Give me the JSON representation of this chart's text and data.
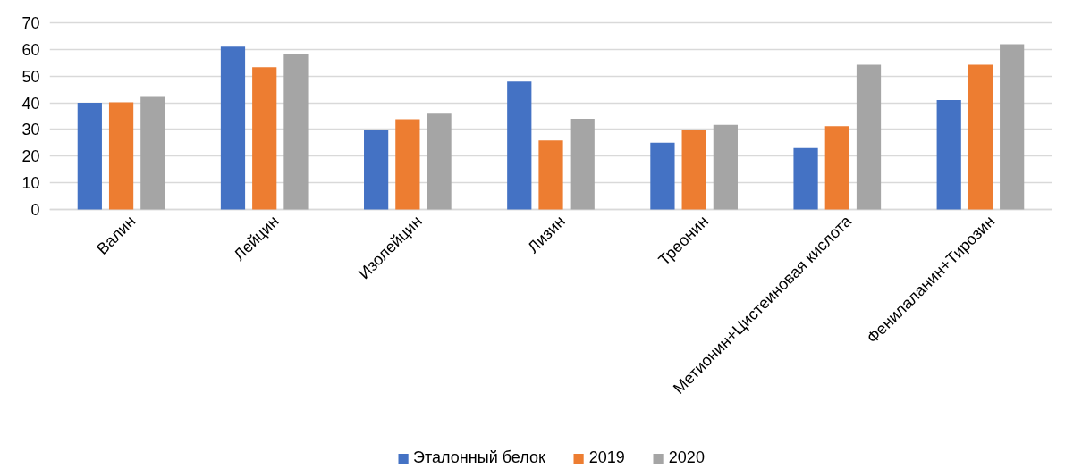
{
  "chart_data": {
    "type": "bar",
    "categories": [
      "Валин",
      "Лейцин",
      "Изолейцин",
      "Лизин",
      "Треонин",
      "Метионин+Цистеиновая кислота",
      "Фенилаланин+Тирозин"
    ],
    "series": [
      {
        "name": "Эталонный белок",
        "color": "#4472c4",
        "values": [
          40,
          61,
          30,
          48,
          25,
          23,
          41
        ]
      },
      {
        "name": "2019",
        "color": "#ed7d31",
        "values": [
          40.2,
          53.3,
          33.8,
          25.9,
          29.9,
          31.2,
          54.3
        ]
      },
      {
        "name": "2020",
        "color": "#a5a5a5",
        "values": [
          42.2,
          58.4,
          35.9,
          34.0,
          31.7,
          54.3,
          62.0
        ]
      }
    ],
    "ylim": [
      0,
      70
    ],
    "yticks": [
      0,
      10,
      20,
      30,
      40,
      50,
      60,
      70
    ],
    "grid": "y",
    "legend": "bottom"
  }
}
